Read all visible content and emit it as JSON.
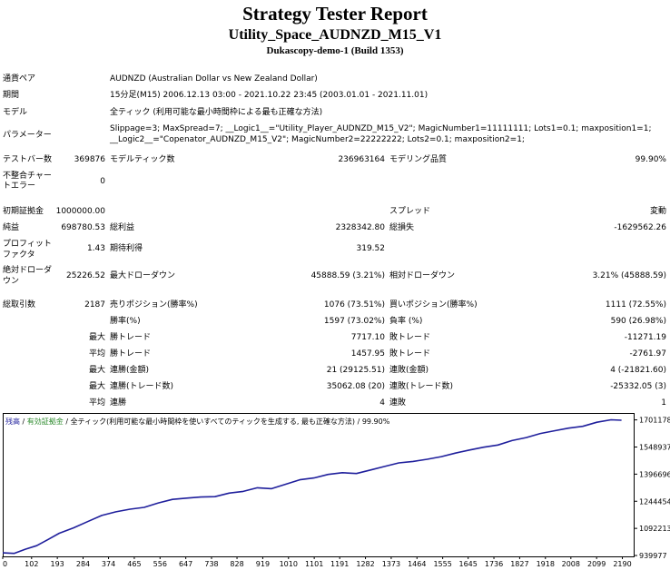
{
  "header": {
    "title": "Strategy Tester Report",
    "subtitle": "Utility_Space_AUDNZD_M15_V1",
    "server": "Dukascopy-demo-1 (Build 1353)"
  },
  "info": {
    "symbol_label": "通貨ペア",
    "symbol_value": "AUDNZD (Australian Dollar vs New Zealand Dollar)",
    "period_label": "期間",
    "period_value": "15分足(M15) 2006.12.13 03:00 - 2021.10.22 23:45 (2003.01.01 - 2021.11.01)",
    "model_label": "モデル",
    "model_value": "全ティック (利用可能な最小時間枠による最も正確な方法)",
    "params_label": "パラメーター",
    "params_line1": "Slippage=3; MaxSpread=7; __Logic1__=\"Utility_Player_AUDNZD_M15_V2\"; MagicNumber1=11111111; Lots1=0.1; maxposition1=1;",
    "params_line2": "__Logic2__=\"Copenator_AUDNZD_M15_V2\"; MagicNumber2=22222222; Lots2=0.1; maxposition2=1;"
  },
  "stats": {
    "bars_label": "テストバー数",
    "bars_value": "369876",
    "ticks_label": "モデルティック数",
    "ticks_value": "236963164",
    "quality_label": "モデリング品質",
    "quality_value": "99.90%",
    "mismatch_label_1": "不整合チャー",
    "mismatch_label_2": "トエラー",
    "mismatch_value": "0",
    "deposit_label": "初期証拠金",
    "deposit_value": "1000000.00",
    "spread_label": "スプレッド",
    "spread_value": "変動",
    "net_label": "純益",
    "net_value": "698780.53",
    "gross_profit_label": "総利益",
    "gross_profit_value": "2328342.80",
    "gross_loss_label": "総損失",
    "gross_loss_value": "-1629562.26",
    "pf_label_1": "プロフィット",
    "pf_label_2": "ファクタ",
    "pf_value": "1.43",
    "expected_label": "期待利得",
    "expected_value": "319.52",
    "abs_dd_label_1": "絶対ドローダ",
    "abs_dd_label_2": "ウン",
    "abs_dd_value": "25226.52",
    "max_dd_label": "最大ドローダウン",
    "max_dd_value": "45888.59 (3.21%)",
    "rel_dd_label": "相対ドローダウン",
    "rel_dd_value": "3.21% (45888.59)"
  },
  "trades": {
    "total_label": "総取引数",
    "total_value": "2187",
    "short_label": "売りポジション(勝率%)",
    "short_value": "1076 (73.51%)",
    "long_label": "買いポジション(勝率%)",
    "long_value": "1111 (72.55%)",
    "win_label": "勝率(%)",
    "win_value": "1597 (73.02%)",
    "loss_label": "負率 (%)",
    "loss_value": "590 (26.98%)",
    "max_prefix": "最大",
    "avg_prefix": "平均",
    "largest_win_label": "勝トレード",
    "largest_win_value": "7717.10",
    "largest_loss_label": "敗トレード",
    "largest_loss_value": "-11271.19",
    "avg_win_label": "勝トレード",
    "avg_win_value": "1457.95",
    "avg_loss_label": "敗トレード",
    "avg_loss_value": "-2761.97",
    "max_cons_win_amt_label": "連勝(金額)",
    "max_cons_win_amt_value": "21 (29125.51)",
    "max_cons_loss_amt_label": "連敗(金額)",
    "max_cons_loss_amt_value": "4 (-21821.60)",
    "max_cons_win_cnt_label": "連勝(トレード数)",
    "max_cons_win_cnt_value": "35062.08 (20)",
    "max_cons_loss_cnt_label": "連敗(トレード数)",
    "max_cons_loss_cnt_value": "-25332.05 (3)",
    "avg_cons_win_label": "連勝",
    "avg_cons_win_value": "4",
    "avg_cons_loss_label": "連敗",
    "avg_cons_loss_value": "1"
  },
  "chart_legend": {
    "balance": "残高",
    "sep1": " / ",
    "equity": "有効証拠金",
    "sep2": " / ",
    "model": "全ティック(利用可能な最小時間枠を使いすべてのティックを生成する, 最も正確な方法)",
    "sep3": " / ",
    "quality": "99.90%"
  },
  "colors": {
    "line": "#1f1f9c",
    "legend_balance": "#1f1f9c",
    "legend_equity": "#2e8b2e"
  },
  "chart_data": {
    "type": "line",
    "title": "",
    "xlabel": "",
    "ylabel": "",
    "x_ticks": [
      0,
      102,
      193,
      284,
      374,
      465,
      556,
      647,
      738,
      828,
      919,
      1010,
      1101,
      1191,
      1282,
      1373,
      1464,
      1555,
      1645,
      1736,
      1827,
      1918,
      2008,
      2099,
      2190
    ],
    "y_ticks": [
      939977,
      1092213,
      1244454,
      1396696,
      1548937,
      1701178
    ],
    "xlim": [
      0,
      2230
    ],
    "ylim": [
      935000,
      1740000
    ],
    "series": [
      {
        "x": [
          0,
          40,
          80,
          120,
          160,
          200,
          250,
          300,
          350,
          400,
          450,
          500,
          550,
          600,
          650,
          700,
          750,
          800,
          850,
          900,
          950,
          1000,
          1050,
          1100,
          1150,
          1200,
          1250,
          1300,
          1350,
          1400,
          1450,
          1500,
          1550,
          1600,
          1650,
          1700,
          1750,
          1800,
          1850,
          1900,
          1950,
          2000,
          2050,
          2100,
          2150,
          2187
        ],
        "y": [
          955000,
          952000,
          975000,
          995000,
          1030000,
          1065000,
          1095000,
          1130000,
          1165000,
          1185000,
          1200000,
          1210000,
          1235000,
          1255000,
          1262000,
          1268000,
          1270000,
          1290000,
          1300000,
          1320000,
          1315000,
          1340000,
          1365000,
          1375000,
          1395000,
          1405000,
          1400000,
          1420000,
          1440000,
          1460000,
          1468000,
          1480000,
          1495000,
          1515000,
          1532000,
          1548000,
          1560000,
          1585000,
          1602000,
          1625000,
          1640000,
          1655000,
          1665000,
          1688000,
          1702000,
          1699000
        ]
      }
    ]
  }
}
